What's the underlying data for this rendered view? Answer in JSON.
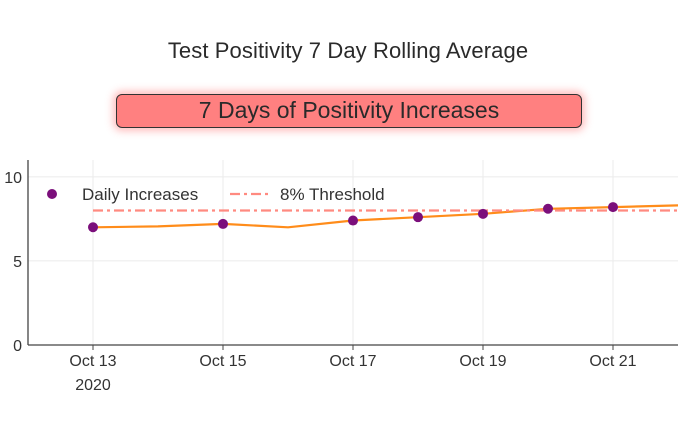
{
  "colors": {
    "background": "#ffffff",
    "banner_fill": "#ff8080",
    "line": "#ff8c1a",
    "markers": "#7b0f7b",
    "threshold": "#ff8a80",
    "grid": "#ebebeb",
    "axis": "#444444"
  },
  "title": "Test Positivity 7 Day Rolling Average",
  "banner": {
    "text": "7 Days of Positivity Increases"
  },
  "chart_data": {
    "type": "line",
    "title": "Test Positivity 7 Day Rolling Average",
    "x_axis": {
      "ticks": [
        "Oct 13",
        "Oct 15",
        "Oct 17",
        "Oct 19",
        "Oct 21"
      ],
      "tick_year_label": "2020",
      "range": [
        "2020-10-12",
        "2020-10-22"
      ]
    },
    "y_axis": {
      "ticks": [
        0,
        5,
        10
      ],
      "range": [
        0,
        11
      ],
      "grid": true
    },
    "legend": {
      "position": "top-left",
      "entries": [
        "Daily Increases",
        "8% Threshold"
      ]
    },
    "series": [
      {
        "name": "Daily Increases",
        "style": "markers",
        "x": [
          "2020-10-13",
          "2020-10-15",
          "2020-10-17",
          "2020-10-18",
          "2020-10-19",
          "2020-10-20",
          "2020-10-21"
        ],
        "y": [
          7.0,
          7.2,
          7.4,
          7.6,
          7.8,
          8.1,
          8.2
        ]
      },
      {
        "style": "line",
        "x": [
          "2020-10-13",
          "2020-10-14",
          "2020-10-15",
          "2020-10-16",
          "2020-10-17",
          "2020-10-18",
          "2020-10-19",
          "2020-10-20",
          "2020-10-21",
          "2020-10-22"
        ],
        "y": [
          7.0,
          7.05,
          7.2,
          7.0,
          7.4,
          7.6,
          7.8,
          8.1,
          8.2,
          8.3
        ]
      },
      {
        "name": "8% Threshold",
        "style": "dashdot",
        "x": [
          "2020-10-13",
          "2020-10-22"
        ],
        "y": [
          8,
          8
        ]
      }
    ]
  }
}
